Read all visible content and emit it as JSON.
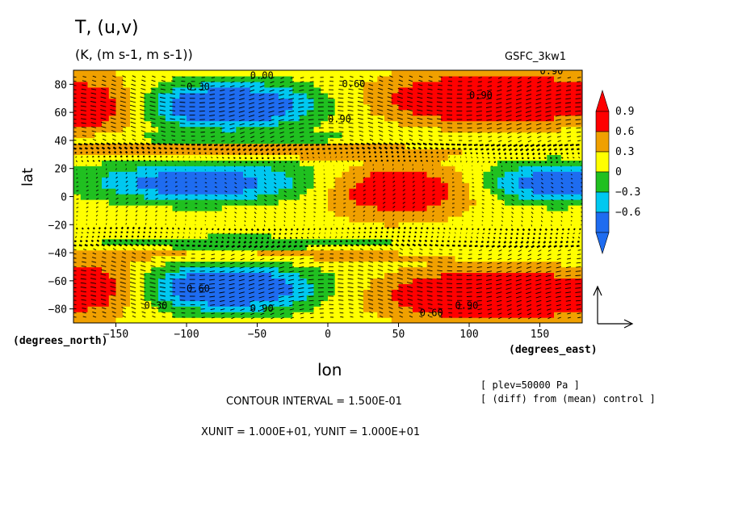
{
  "header": {
    "title": "T, (u,v)",
    "units": "(K, (m s-1, m s-1))",
    "dataset": "GSFC_3kw1"
  },
  "axes": {
    "xlabel": "lon",
    "ylabel": "lat",
    "xunits": "(degrees_east)",
    "yunits": "(degrees_north)"
  },
  "notes": {
    "level": "[ plev=50000 Pa ]",
    "diff": "[ (diff) from (mean) control ]",
    "contour_interval": "CONTOUR INTERVAL = 1.500E-01",
    "vector_units": "XUNIT = 1.000E+01, YUNIT = 1.000E+01"
  },
  "chart_data": {
    "type": "heatmap",
    "xlim": [
      -180,
      180
    ],
    "ylim": [
      -90,
      90
    ],
    "xticks": [
      -150,
      -100,
      -50,
      0,
      50,
      100,
      150
    ],
    "yticks": [
      -80,
      -60,
      -40,
      -20,
      0,
      20,
      40,
      60,
      80
    ],
    "colorbar": {
      "levels": [
        -0.6,
        -0.3,
        0,
        0.3,
        0.6,
        0.9
      ],
      "labels": [
        "-0.6",
        "-0.3",
        "0",
        "0.3",
        "0.6",
        "0.9"
      ],
      "colors": [
        "#1e6cf0",
        "#00c8f0",
        "#20c020",
        "#ffff00",
        "#f0a000",
        "#ff0000"
      ]
    },
    "contour_labels": [
      {
        "text": "0.00",
        "lon": -55,
        "lat": 84
      },
      {
        "text": "0.30",
        "lon": -100,
        "lat": 76
      },
      {
        "text": "0.60",
        "lon": 10,
        "lat": 78
      },
      {
        "text": "0.90",
        "lon": 150,
        "lat": 87
      },
      {
        "text": "0.90",
        "lon": 100,
        "lat": 70
      },
      {
        "text": "0.90",
        "lon": 0,
        "lat": 53
      },
      {
        "text": "0.60",
        "lon": -100,
        "lat": -68
      },
      {
        "text": "0.30",
        "lon": -130,
        "lat": -80
      },
      {
        "text": "0.90",
        "lon": -55,
        "lat": -82
      },
      {
        "text": "0.60",
        "lon": 65,
        "lat": -85
      },
      {
        "text": "0.90",
        "lon": 90,
        "lat": -80
      }
    ]
  }
}
